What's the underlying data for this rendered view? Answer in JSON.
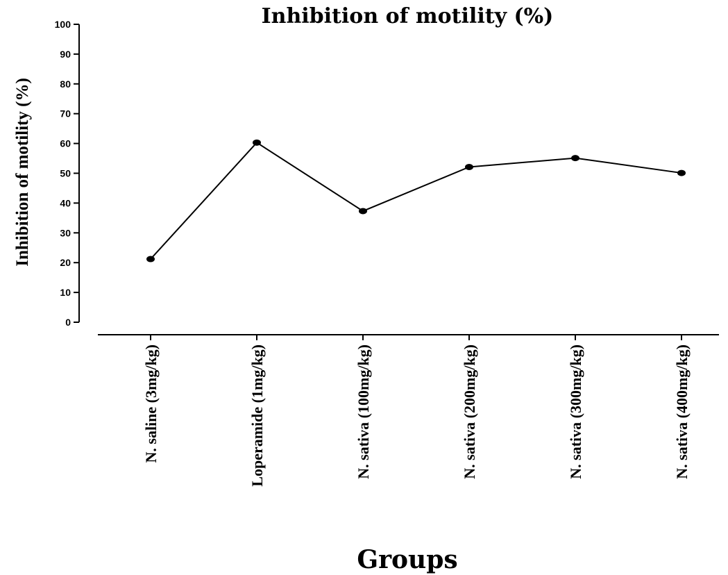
{
  "chart_data": {
    "type": "line",
    "title": "Inhibition of motility (%)",
    "xlabel": "Groups",
    "ylabel": "Inhibition of motility (%)",
    "ylim": [
      0,
      100
    ],
    "yticks": [
      0,
      10,
      20,
      30,
      40,
      50,
      60,
      70,
      80,
      90,
      100
    ],
    "grid": false,
    "categories": [
      "N. saline (3mg/kg)",
      "Loperamide (1mg/kg)",
      "N. sativa (100mg/kg)",
      "N. sativa (200mg/kg)",
      "N. sativa (300mg/kg)",
      "N. sativa (400mg/kg)"
    ],
    "series": [
      {
        "values": [
          21.2,
          60.3,
          37.3,
          52.1,
          55.1,
          50.1
        ]
      }
    ]
  }
}
